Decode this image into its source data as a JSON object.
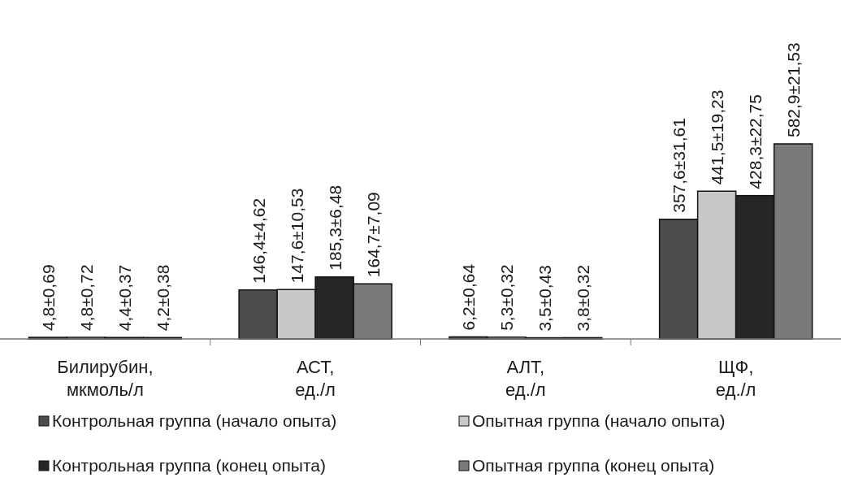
{
  "chart_data": {
    "type": "bar",
    "categories": [
      "Билирубин,\nмкмоль/л",
      "АСТ,\nед./л",
      "АЛТ,\nед./л",
      "ЩФ,\nед./л"
    ],
    "series": [
      {
        "name": "Контрольная группа (начало опыта)",
        "color": "#4d4d4d",
        "values": [
          4.8,
          146.4,
          6.2,
          357.6
        ],
        "value_labels": [
          "4,8±0,69",
          "146,4±4,62",
          "6,2±0,64",
          "357,6±31,61"
        ]
      },
      {
        "name": "Опытная группа (начало опыта)",
        "color": "#c8c8c8",
        "values": [
          4.8,
          147.6,
          5.3,
          441.5
        ],
        "value_labels": [
          "4,8±0,72",
          "147,6±10,53",
          "5,3±0,32",
          "441,5±19,23"
        ]
      },
      {
        "name": "Контрольная группа (конец опыта)",
        "color": "#262626",
        "values": [
          4.4,
          185.3,
          3.5,
          428.3
        ],
        "value_labels": [
          "4,4±0,37",
          "185,3±6,48",
          "3,5±0,43",
          "428,3±22,75"
        ]
      },
      {
        "name": "Опытная группа (конец опыта)",
        "color": "#7a7a7a",
        "values": [
          4.2,
          164.7,
          3.8,
          582.9
        ],
        "value_labels": [
          "4,2±0,38",
          "164,7±7,09",
          "3,8±0,32",
          "582,9±21,53"
        ]
      }
    ],
    "legend": "bottom"
  }
}
